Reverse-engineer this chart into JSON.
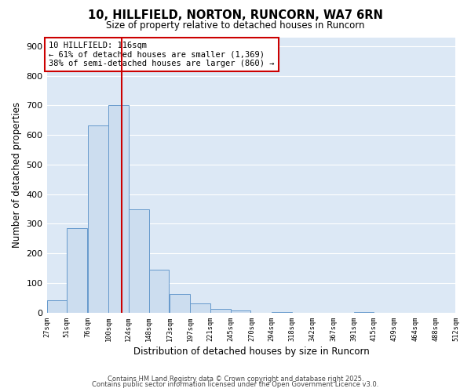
{
  "title": "10, HILLFIELD, NORTON, RUNCORN, WA7 6RN",
  "subtitle": "Size of property relative to detached houses in Runcorn",
  "xlabel": "Distribution of detached houses by size in Runcorn",
  "ylabel": "Number of detached properties",
  "bar_left_edges": [
    27,
    51,
    76,
    100,
    124,
    148,
    173,
    197,
    221,
    245,
    270,
    294,
    318,
    342,
    367,
    391,
    415,
    439,
    464,
    488
  ],
  "bar_heights": [
    42,
    285,
    632,
    700,
    350,
    145,
    63,
    30,
    12,
    8,
    0,
    3,
    0,
    0,
    0,
    1,
    0,
    0,
    0,
    0
  ],
  "bin_width": 24,
  "bar_color": "#ccddef",
  "bar_edge_color": "#6699cc",
  "vline_x": 116,
  "vline_color": "#cc0000",
  "annotation_line1": "10 HILLFIELD: 116sqm",
  "annotation_line2": "← 61% of detached houses are smaller (1,369)",
  "annotation_line3": "38% of semi-detached houses are larger (860) →",
  "annotation_box_color": "#cc0000",
  "ylim": [
    0,
    930
  ],
  "yticks": [
    0,
    100,
    200,
    300,
    400,
    500,
    600,
    700,
    800,
    900
  ],
  "xtick_labels": [
    "27sqm",
    "51sqm",
    "76sqm",
    "100sqm",
    "124sqm",
    "148sqm",
    "173sqm",
    "197sqm",
    "221sqm",
    "245sqm",
    "270sqm",
    "294sqm",
    "318sqm",
    "342sqm",
    "367sqm",
    "391sqm",
    "415sqm",
    "439sqm",
    "464sqm",
    "488sqm",
    "512sqm"
  ],
  "bg_color": "#dce8f5",
  "grid_color": "#ffffff",
  "footer_line1": "Contains HM Land Registry data © Crown copyright and database right 2025.",
  "footer_line2": "Contains public sector information licensed under the Open Government Licence v3.0."
}
